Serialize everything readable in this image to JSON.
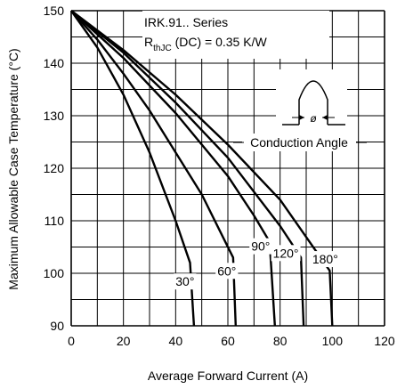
{
  "chart_data": {
    "type": "line",
    "xlabel": "Average Forward Current (A)",
    "ylabel": "Maximum Allowable Case Temperature (°C)",
    "xlim": [
      0,
      120
    ],
    "ylim": [
      90,
      150
    ],
    "xticks": [
      "0",
      "20",
      "40",
      "60",
      "80",
      "100",
      "120"
    ],
    "yticks": [
      "90",
      "100",
      "110",
      "120",
      "130",
      "140",
      "150"
    ],
    "grid": true,
    "annotations": {
      "series_title": "IRK.91.. Series",
      "rth_main": "R",
      "rth_sub": "thJC",
      "rth_rest": " (DC) = 0.35 K/W",
      "conduction_angle": "Conduction Angle",
      "phi": "ø"
    },
    "series": [
      {
        "name": "30°",
        "x": [
          0,
          10,
          20,
          30,
          40,
          45.5,
          47
        ],
        "y": [
          150,
          143,
          134,
          123,
          110,
          102,
          90
        ]
      },
      {
        "name": "60°",
        "x": [
          0,
          10,
          20,
          30,
          40,
          50,
          60,
          62,
          63
        ],
        "y": [
          150,
          144.5,
          138,
          131,
          123,
          115,
          105,
          103,
          90
        ]
      },
      {
        "name": "90°",
        "x": [
          0,
          20,
          40,
          60,
          70,
          76,
          78
        ],
        "y": [
          150,
          141,
          130.5,
          118.5,
          111,
          106,
          90
        ]
      },
      {
        "name": "120°",
        "x": [
          0,
          20,
          40,
          60,
          80,
          88,
          89
        ],
        "y": [
          150,
          142,
          132.5,
          122,
          109,
          103,
          90
        ]
      },
      {
        "name": "180°",
        "x": [
          0,
          20,
          40,
          60,
          80,
          99,
          100
        ],
        "y": [
          150,
          142.5,
          134,
          124.5,
          114,
          100.5,
          90
        ]
      }
    ]
  }
}
